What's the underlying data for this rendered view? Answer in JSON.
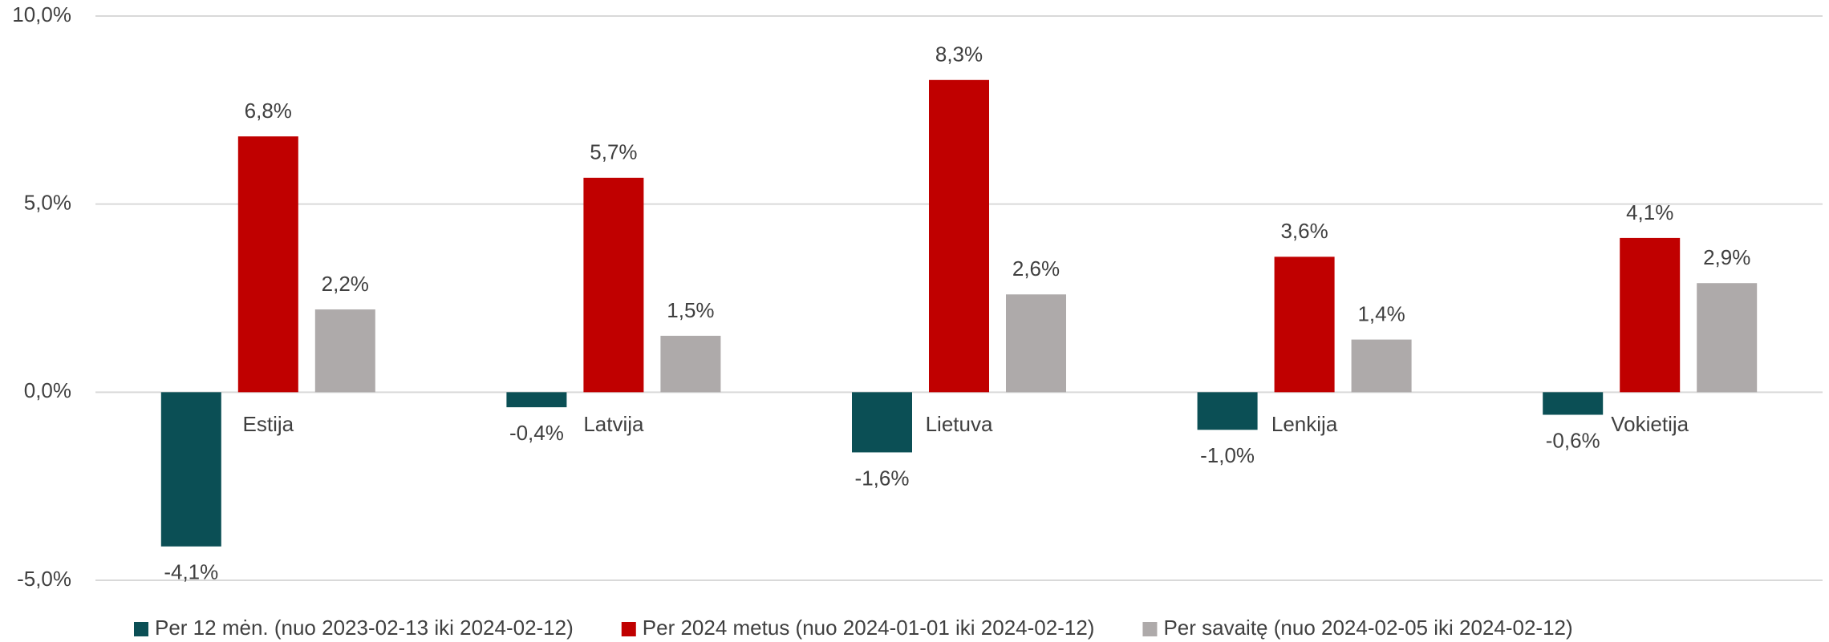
{
  "chart_data": {
    "type": "bar",
    "categories": [
      "Estija",
      "Latvija",
      "Lietuva",
      "Lenkija",
      "Vokietija"
    ],
    "series": [
      {
        "name": "Per 12 mėn. (nuo 2023-02-13 iki 2024-02-12)",
        "color": "#0b4f55",
        "values": [
          -4.1,
          -0.4,
          -1.6,
          -1.0,
          -0.6
        ],
        "value_labels": [
          "-4,1%",
          "-0,4%",
          "-1,6%",
          "-1,0%",
          "-0,6%"
        ]
      },
      {
        "name": "Per 2024 metus (nuo 2024-01-01 iki 2024-02-12)",
        "color": "#c00000",
        "values": [
          6.8,
          5.7,
          8.3,
          3.6,
          4.1
        ],
        "value_labels": [
          "6,8%",
          "5,7%",
          "8,3%",
          "3,6%",
          "4,1%"
        ]
      },
      {
        "name": "Per savaitę (nuo 2024-02-05 iki 2024-02-12)",
        "color": "#aeaaaa",
        "values": [
          2.2,
          1.5,
          2.6,
          1.4,
          2.9
        ],
        "value_labels": [
          "2,2%",
          "1,5%",
          "2,6%",
          "1,4%",
          "2,9%"
        ]
      }
    ],
    "ylim": [
      -5,
      10
    ],
    "yticks": [
      {
        "value": -5,
        "label": "-5,0%"
      },
      {
        "value": 0,
        "label": "0,0%"
      },
      {
        "value": 5,
        "label": "5,0%"
      },
      {
        "value": 10,
        "label": "10,0%"
      }
    ],
    "grid": true,
    "legend": "bottom"
  }
}
